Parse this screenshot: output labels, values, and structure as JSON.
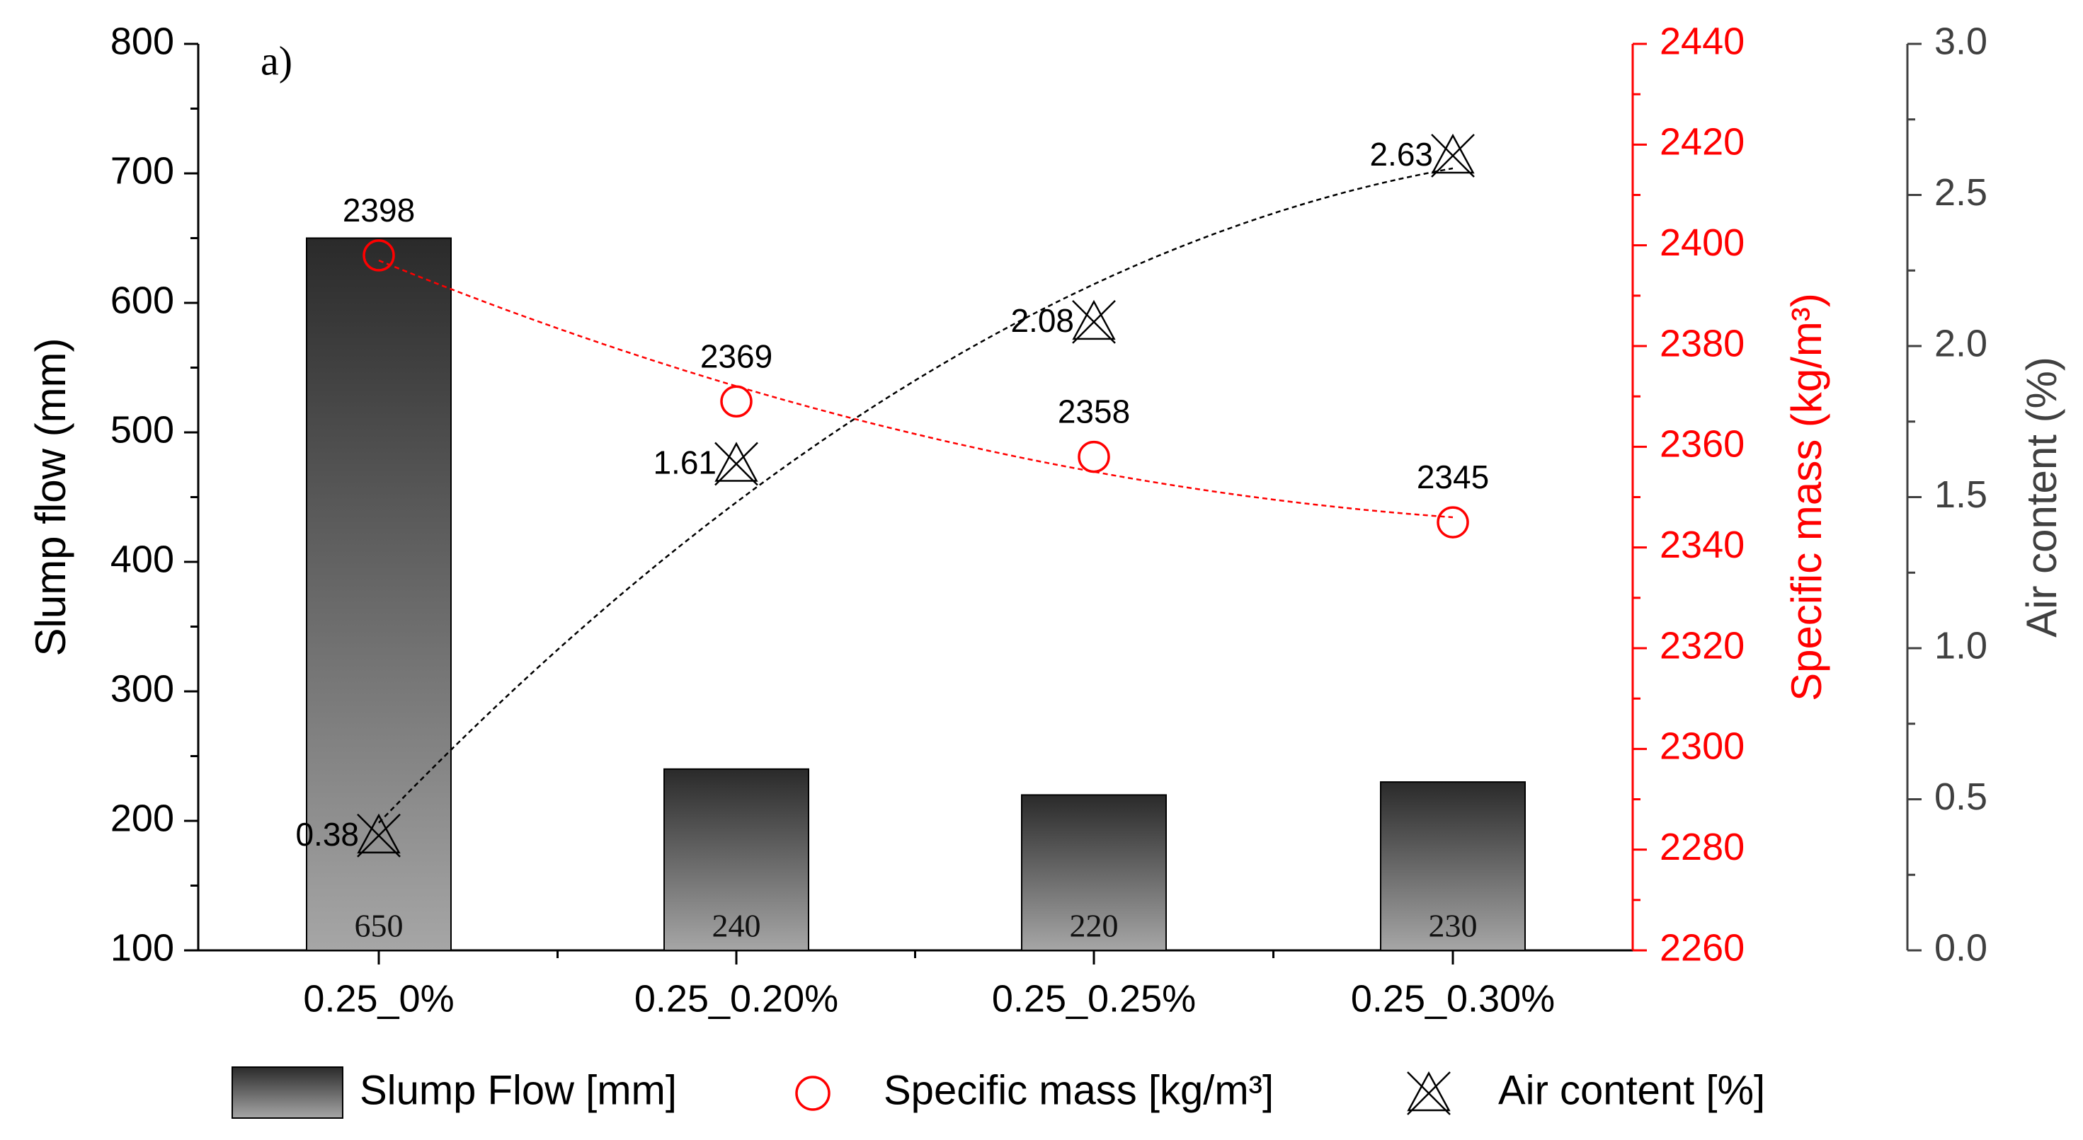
{
  "chart_data": {
    "type": "bar",
    "panel_label": "a)",
    "categories": [
      "0.25_0%",
      "0.25_0.20%",
      "0.25_0.25%",
      "0.25_0.30%"
    ],
    "series": [
      {
        "name": "Slump Flow [mm]",
        "type": "bar",
        "axis": "left",
        "values": [
          650,
          240,
          220,
          230
        ],
        "data_labels": [
          "650",
          "240",
          "220",
          "230"
        ]
      },
      {
        "name": "Specific mass [kg/m³]",
        "type": "scatter",
        "axis": "right1",
        "values": [
          2398,
          2369,
          2358,
          2345
        ],
        "data_labels": [
          "2398",
          "2369",
          "2358",
          "2345"
        ],
        "trend": "polynomial"
      },
      {
        "name": "Air content [%]",
        "type": "scatter",
        "axis": "right2",
        "values": [
          0.38,
          1.61,
          2.08,
          2.63
        ],
        "data_labels": [
          "0.38",
          "1.61",
          "2.08",
          "2.63"
        ],
        "trend": "polynomial"
      }
    ],
    "axes": {
      "left": {
        "label": "Slump flow (mm)",
        "range": [
          100,
          800
        ],
        "ticks": [
          "100",
          "200",
          "300",
          "400",
          "500",
          "600",
          "700",
          "800"
        ]
      },
      "right1": {
        "label": "Specific mass (kg/m³)",
        "range": [
          2260,
          2440
        ],
        "ticks": [
          "2260",
          "2280",
          "2300",
          "2320",
          "2340",
          "2360",
          "2380",
          "2400",
          "2420",
          "2440"
        ]
      },
      "right2": {
        "label": "Air content (%)",
        "range": [
          0,
          3
        ],
        "ticks": [
          "0.0",
          "0.5",
          "1.0",
          "1.5",
          "2.0",
          "2.5",
          "3.0"
        ]
      }
    },
    "legend": {
      "position": "bottom",
      "items": [
        "Slump Flow [mm]",
        "Specific mass [kg/m³]",
        "Air content [%]"
      ]
    },
    "grid": false,
    "colors": {
      "bar_top": "#2a2a2a",
      "bar_bottom": "#a6a6a6",
      "specific_mass": "#ff0000",
      "air_content": "#000000",
      "axis_left": "#000000",
      "axis_right1": "#ff0000",
      "axis_right2": "#404040"
    }
  }
}
